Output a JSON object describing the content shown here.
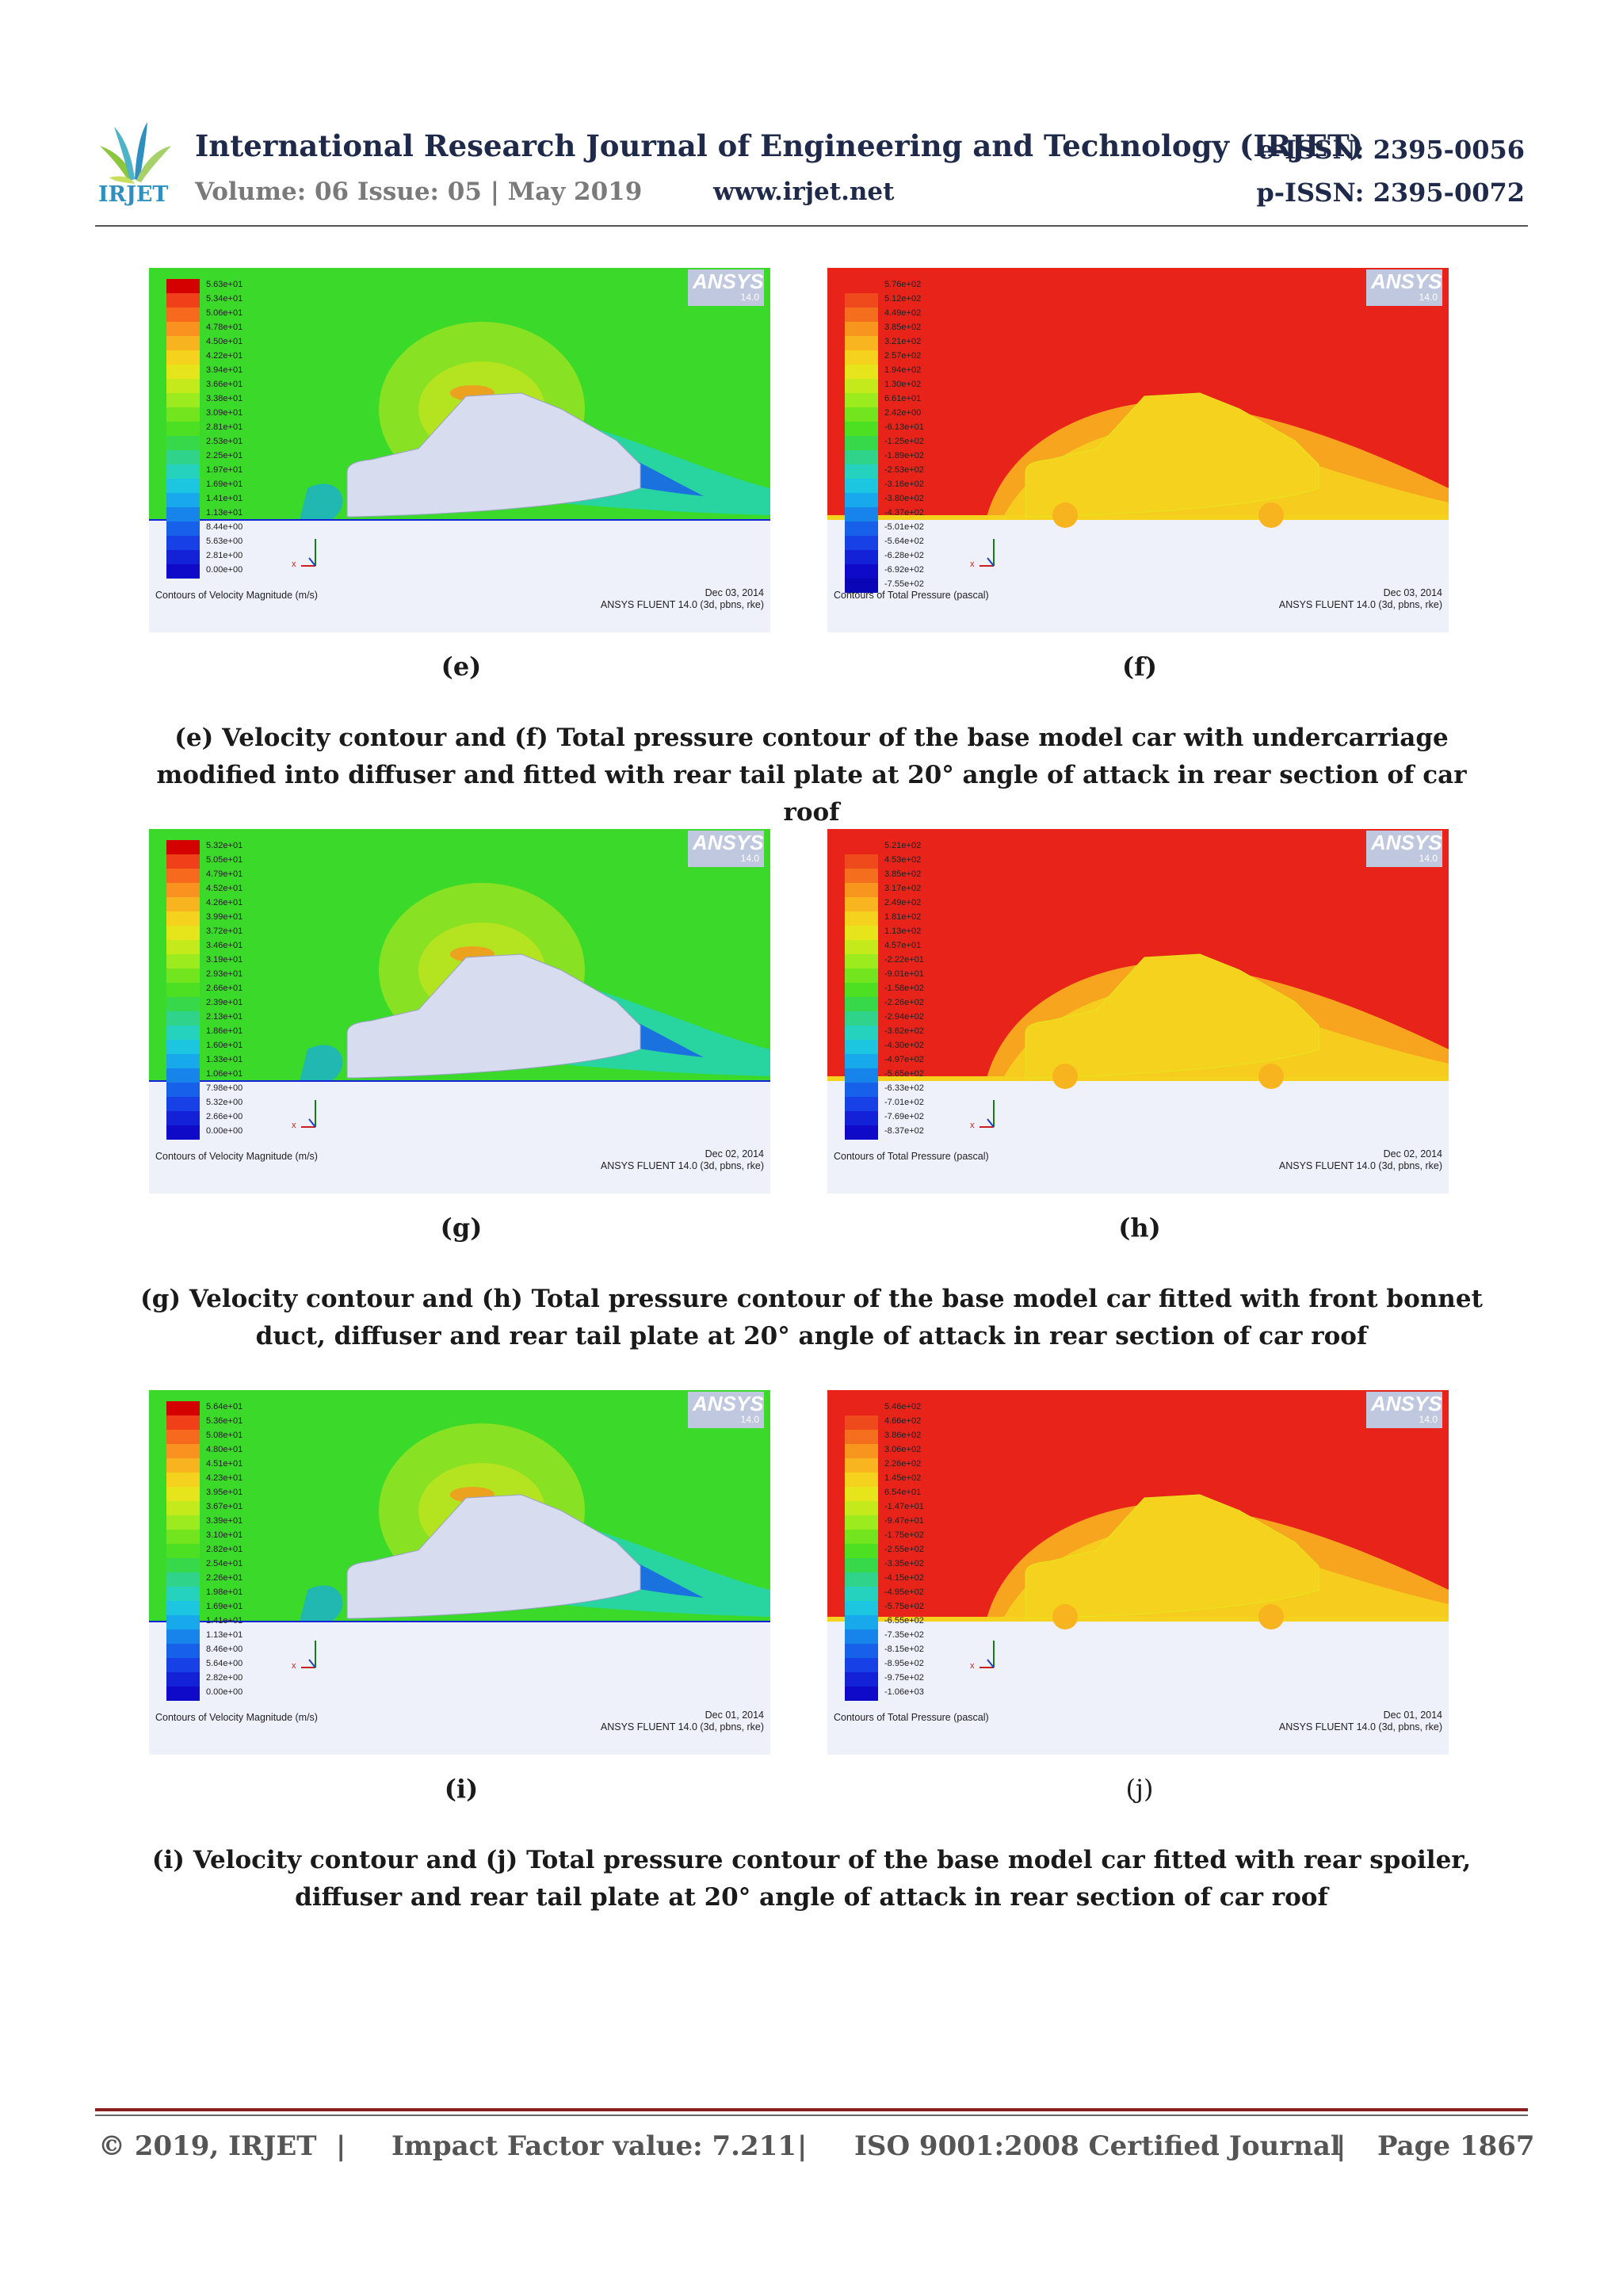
{
  "header": {
    "journal_title": "International Research Journal of Engineering and Technology (IRJET)",
    "volume": "Volume: 06 Issue: 05 | May 2019",
    "website": "www.irjet.net",
    "eissn": "e-ISSN: 2395-0056",
    "pissn": "p-ISSN: 2395-0072",
    "logo_text": "IRJET"
  },
  "panels": [
    {
      "id": "e",
      "kind": "velocity",
      "caption": "Contours of Velocity Magnitude (m/s)",
      "date": "Dec 03, 2014",
      "solver": "ANSYS FLUENT 14.0 (3d, pbns, rke)",
      "legend": [
        "5.63e+01",
        "5.34e+01",
        "5.06e+01",
        "4.78e+01",
        "4.50e+01",
        "4.22e+01",
        "3.94e+01",
        "3.66e+01",
        "3.38e+01",
        "3.09e+01",
        "2.81e+01",
        "2.53e+01",
        "2.25e+01",
        "1.97e+01",
        "1.69e+01",
        "1.41e+01",
        "1.13e+01",
        "8.44e+00",
        "5.63e+00",
        "2.81e+00",
        "0.00e+00"
      ]
    },
    {
      "id": "f",
      "kind": "pressure",
      "caption": "Contours of Total Pressure (pascal)",
      "date": "Dec 03, 2014",
      "solver": "ANSYS FLUENT 14.0 (3d, pbns, rke)",
      "legend": [
        "5.76e+02",
        "5.12e+02",
        "4.49e+02",
        "3.85e+02",
        "3.21e+02",
        "2.57e+02",
        "1.94e+02",
        "1.30e+02",
        "6.61e+01",
        "2.42e+00",
        "-6.13e+01",
        "-1.25e+02",
        "-1.89e+02",
        "-2.53e+02",
        "-3.16e+02",
        "-3.80e+02",
        "-4.37e+02",
        "-5.01e+02",
        "-5.64e+02",
        "-6.28e+02",
        "-6.92e+02",
        "-7.55e+02"
      ]
    },
    {
      "id": "g",
      "kind": "velocity",
      "caption": "Contours of Velocity Magnitude (m/s)",
      "date": "Dec 02, 2014",
      "solver": "ANSYS FLUENT 14.0 (3d, pbns, rke)",
      "legend": [
        "5.32e+01",
        "5.05e+01",
        "4.79e+01",
        "4.52e+01",
        "4.26e+01",
        "3.99e+01",
        "3.72e+01",
        "3.46e+01",
        "3.19e+01",
        "2.93e+01",
        "2.66e+01",
        "2.39e+01",
        "2.13e+01",
        "1.86e+01",
        "1.60e+01",
        "1.33e+01",
        "1.06e+01",
        "7.98e+00",
        "5.32e+00",
        "2.66e+00",
        "0.00e+00"
      ]
    },
    {
      "id": "h",
      "kind": "pressure",
      "caption": "Contours of Total Pressure (pascal)",
      "date": "Dec 02, 2014",
      "solver": "ANSYS FLUENT 14.0 (3d, pbns, rke)",
      "legend": [
        "5.21e+02",
        "4.53e+02",
        "3.85e+02",
        "3.17e+02",
        "2.49e+02",
        "1.81e+02",
        "1.13e+02",
        "4.57e+01",
        "-2.22e+01",
        "-9.01e+01",
        "-1.58e+02",
        "-2.26e+02",
        "-2.94e+02",
        "-3.62e+02",
        "-4.30e+02",
        "-4.97e+02",
        "-5.65e+02",
        "-6.33e+02",
        "-7.01e+02",
        "-7.69e+02",
        "-8.37e+02"
      ]
    },
    {
      "id": "i",
      "kind": "velocity",
      "caption": "Contours of Velocity Magnitude (m/s)",
      "date": "Dec 01, 2014",
      "solver": "ANSYS FLUENT 14.0 (3d, pbns, rke)",
      "legend": [
        "5.64e+01",
        "5.36e+01",
        "5.08e+01",
        "4.80e+01",
        "4.51e+01",
        "4.23e+01",
        "3.95e+01",
        "3.67e+01",
        "3.39e+01",
        "3.10e+01",
        "2.82e+01",
        "2.54e+01",
        "2.26e+01",
        "1.98e+01",
        "1.69e+01",
        "1.41e+01",
        "1.13e+01",
        "8.46e+00",
        "5.64e+00",
        "2.82e+00",
        "0.00e+00"
      ]
    },
    {
      "id": "j",
      "kind": "pressure",
      "caption": "Contours of Total Pressure (pascal)",
      "date": "Dec 01, 2014",
      "solver": "ANSYS FLUENT 14.0 (3d, pbns, rke)",
      "legend": [
        "5.46e+02",
        "4.66e+02",
        "3.86e+02",
        "3.06e+02",
        "2.26e+02",
        "1.45e+02",
        "6.54e+01",
        "-1.47e+01",
        "-9.47e+01",
        "-1.75e+02",
        "-2.55e+02",
        "-3.35e+02",
        "-4.15e+02",
        "-4.95e+02",
        "-5.75e+02",
        "-6.55e+02",
        "-7.35e+02",
        "-8.15e+02",
        "-8.95e+02",
        "-9.75e+02",
        "-1.06e+03"
      ]
    }
  ],
  "ansys_logo": {
    "text": "ANSYS",
    "version": "14.0"
  },
  "sub_labels": {
    "e": "(e)",
    "f": "(f)",
    "g": "(g)",
    "h": "(h)",
    "i": "(i)",
    "j": "(j)"
  },
  "captions": {
    "ef": "(e) Velocity contour and (f) Total pressure contour of the base model car with undercarriage modified into diffuser and fitted with rear tail plate at 20° angle of attack in rear section of car roof",
    "gh": "(g) Velocity contour and (h) Total pressure contour of the base model car fitted with front bonnet duct, diffuser and rear tail plate at 20° angle of attack in rear section of car roof",
    "ij": "(i) Velocity contour and (j) Total pressure contour of the base model car fitted with rear spoiler, diffuser and rear tail plate at 20° angle of attack in rear section of car roof"
  },
  "footer": {
    "copyright": "© 2019, IRJET",
    "sep": "|",
    "impact": "Impact Factor value: 7.211",
    "iso": "ISO 9001:2008 Certified Journal",
    "page": "Page 1867"
  },
  "colors": {
    "header_navy": "#1f2a4a",
    "footer_rule": "#8a1f1f",
    "flow_green": "#3ad92a",
    "pressure_red": "#e8231a",
    "car_fill": "#d7dcef"
  }
}
